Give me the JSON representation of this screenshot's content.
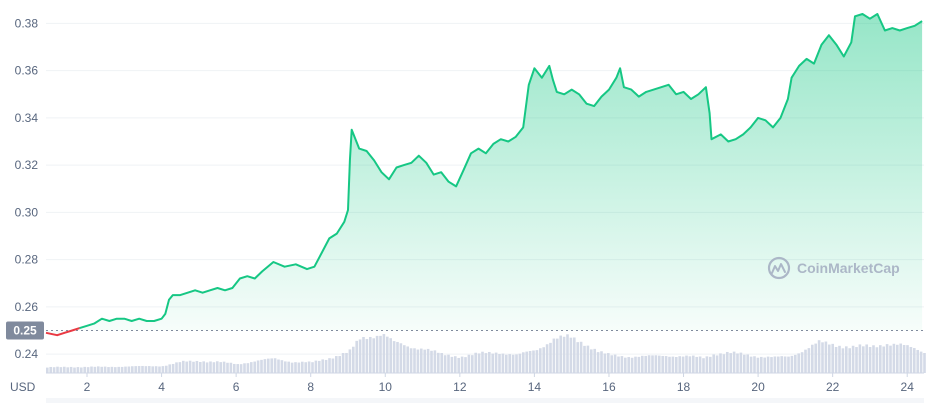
{
  "chart_data": {
    "type": "area",
    "currency_label": "USD",
    "watermark": "CoinMarketCap",
    "reference_value": 0.25,
    "reference_label": "0.25",
    "ylim": [
      0.232,
      0.3878
    ],
    "yticks": [
      0.24,
      0.26,
      0.28,
      0.3,
      0.32,
      0.34,
      0.36,
      0.38
    ],
    "ytick_labels": [
      "0.24",
      "0.26",
      "0.28",
      "0.30",
      "0.32",
      "0.34",
      "0.36",
      "0.38"
    ],
    "xlim": [
      0.9,
      24.45
    ],
    "xticks": [
      2,
      4,
      6,
      8,
      10,
      12,
      14,
      16,
      18,
      20,
      22,
      24
    ],
    "xtick_labels": [
      "2",
      "4",
      "6",
      "8",
      "10",
      "12",
      "14",
      "16",
      "18",
      "20",
      "22",
      "24"
    ],
    "colors": {
      "up": "#16c784",
      "down": "#ea3943",
      "volume": "#cfd6e4"
    },
    "series": [
      {
        "values": [
          [
            0.9,
            0.249
          ],
          [
            1.2,
            0.248
          ],
          [
            1.4,
            0.249
          ],
          [
            1.6,
            0.25
          ],
          [
            1.8,
            0.251
          ],
          [
            2.0,
            0.252
          ],
          [
            2.2,
            0.253
          ],
          [
            2.4,
            0.255
          ],
          [
            2.6,
            0.254
          ],
          [
            2.8,
            0.255
          ],
          [
            3.0,
            0.255
          ],
          [
            3.2,
            0.254
          ],
          [
            3.4,
            0.255
          ],
          [
            3.6,
            0.254
          ],
          [
            3.8,
            0.254
          ],
          [
            4.0,
            0.255
          ],
          [
            4.1,
            0.257
          ],
          [
            4.2,
            0.263
          ],
          [
            4.3,
            0.265
          ],
          [
            4.5,
            0.265
          ],
          [
            4.7,
            0.266
          ],
          [
            4.9,
            0.267
          ],
          [
            5.1,
            0.266
          ],
          [
            5.3,
            0.267
          ],
          [
            5.5,
            0.268
          ],
          [
            5.7,
            0.267
          ],
          [
            5.9,
            0.268
          ],
          [
            6.1,
            0.272
          ],
          [
            6.3,
            0.273
          ],
          [
            6.5,
            0.272
          ],
          [
            6.7,
            0.275
          ],
          [
            7.0,
            0.279
          ],
          [
            7.3,
            0.277
          ],
          [
            7.6,
            0.278
          ],
          [
            7.9,
            0.276
          ],
          [
            8.1,
            0.277
          ],
          [
            8.3,
            0.283
          ],
          [
            8.5,
            0.289
          ],
          [
            8.7,
            0.291
          ],
          [
            8.9,
            0.296
          ],
          [
            9.0,
            0.301
          ],
          [
            9.05,
            0.322
          ],
          [
            9.1,
            0.335
          ],
          [
            9.3,
            0.327
          ],
          [
            9.5,
            0.326
          ],
          [
            9.7,
            0.322
          ],
          [
            9.9,
            0.317
          ],
          [
            10.1,
            0.314
          ],
          [
            10.3,
            0.319
          ],
          [
            10.5,
            0.32
          ],
          [
            10.7,
            0.321
          ],
          [
            10.9,
            0.324
          ],
          [
            11.1,
            0.321
          ],
          [
            11.3,
            0.316
          ],
          [
            11.5,
            0.317
          ],
          [
            11.7,
            0.313
          ],
          [
            11.9,
            0.311
          ],
          [
            12.1,
            0.318
          ],
          [
            12.3,
            0.325
          ],
          [
            12.5,
            0.327
          ],
          [
            12.7,
            0.325
          ],
          [
            12.9,
            0.329
          ],
          [
            13.1,
            0.331
          ],
          [
            13.3,
            0.33
          ],
          [
            13.5,
            0.332
          ],
          [
            13.7,
            0.336
          ],
          [
            13.85,
            0.354
          ],
          [
            14.0,
            0.361
          ],
          [
            14.2,
            0.357
          ],
          [
            14.4,
            0.362
          ],
          [
            14.5,
            0.356
          ],
          [
            14.6,
            0.351
          ],
          [
            14.8,
            0.35
          ],
          [
            15.0,
            0.352
          ],
          [
            15.2,
            0.35
          ],
          [
            15.4,
            0.346
          ],
          [
            15.6,
            0.345
          ],
          [
            15.8,
            0.349
          ],
          [
            16.0,
            0.352
          ],
          [
            16.2,
            0.357
          ],
          [
            16.3,
            0.361
          ],
          [
            16.4,
            0.353
          ],
          [
            16.6,
            0.352
          ],
          [
            16.8,
            0.349
          ],
          [
            17.0,
            0.351
          ],
          [
            17.2,
            0.352
          ],
          [
            17.4,
            0.353
          ],
          [
            17.6,
            0.354
          ],
          [
            17.8,
            0.35
          ],
          [
            18.0,
            0.351
          ],
          [
            18.2,
            0.348
          ],
          [
            18.4,
            0.35
          ],
          [
            18.6,
            0.353
          ],
          [
            18.7,
            0.342
          ],
          [
            18.75,
            0.331
          ],
          [
            19.0,
            0.333
          ],
          [
            19.2,
            0.33
          ],
          [
            19.4,
            0.331
          ],
          [
            19.6,
            0.333
          ],
          [
            19.8,
            0.336
          ],
          [
            20.0,
            0.34
          ],
          [
            20.2,
            0.339
          ],
          [
            20.4,
            0.336
          ],
          [
            20.6,
            0.34
          ],
          [
            20.8,
            0.348
          ],
          [
            20.9,
            0.357
          ],
          [
            21.1,
            0.362
          ],
          [
            21.3,
            0.365
          ],
          [
            21.5,
            0.363
          ],
          [
            21.7,
            0.371
          ],
          [
            21.9,
            0.375
          ],
          [
            22.1,
            0.371
          ],
          [
            22.3,
            0.366
          ],
          [
            22.5,
            0.372
          ],
          [
            22.6,
            0.383
          ],
          [
            22.8,
            0.384
          ],
          [
            23.0,
            0.382
          ],
          [
            23.2,
            0.384
          ],
          [
            23.4,
            0.377
          ],
          [
            23.6,
            0.378
          ],
          [
            23.8,
            0.377
          ],
          [
            24.0,
            0.378
          ],
          [
            24.2,
            0.379
          ],
          [
            24.4,
            0.381
          ]
        ]
      }
    ],
    "volume": [
      [
        0.9,
        0.1
      ],
      [
        1.5,
        0.11
      ],
      [
        2.0,
        0.11
      ],
      [
        2.5,
        0.11
      ],
      [
        3.0,
        0.12
      ],
      [
        3.5,
        0.12
      ],
      [
        4.0,
        0.13
      ],
      [
        4.5,
        0.2
      ],
      [
        5.0,
        0.22
      ],
      [
        5.5,
        0.2
      ],
      [
        6.0,
        0.16
      ],
      [
        6.5,
        0.22
      ],
      [
        7.0,
        0.26
      ],
      [
        7.5,
        0.2
      ],
      [
        8.0,
        0.19
      ],
      [
        8.5,
        0.28
      ],
      [
        9.0,
        0.38
      ],
      [
        9.3,
        0.62
      ],
      [
        9.6,
        0.68
      ],
      [
        9.9,
        0.72
      ],
      [
        10.2,
        0.55
      ],
      [
        10.6,
        0.48
      ],
      [
        11.0,
        0.45
      ],
      [
        11.5,
        0.33
      ],
      [
        12.0,
        0.3
      ],
      [
        12.5,
        0.35
      ],
      [
        13.0,
        0.38
      ],
      [
        13.5,
        0.32
      ],
      [
        14.0,
        0.42
      ],
      [
        14.5,
        0.62
      ],
      [
        14.9,
        0.65
      ],
      [
        15.3,
        0.55
      ],
      [
        15.7,
        0.38
      ],
      [
        16.0,
        0.32
      ],
      [
        16.5,
        0.3
      ],
      [
        17.0,
        0.3
      ],
      [
        17.5,
        0.32
      ],
      [
        18.0,
        0.3
      ],
      [
        18.5,
        0.28
      ],
      [
        18.8,
        0.35
      ],
      [
        19.2,
        0.36
      ],
      [
        19.6,
        0.34
      ],
      [
        20.0,
        0.3
      ],
      [
        20.4,
        0.28
      ],
      [
        20.8,
        0.3
      ],
      [
        21.2,
        0.42
      ],
      [
        21.6,
        0.55
      ],
      [
        22.0,
        0.52
      ],
      [
        22.5,
        0.47
      ],
      [
        23.0,
        0.48
      ],
      [
        23.4,
        0.54
      ],
      [
        23.8,
        0.5
      ],
      [
        24.2,
        0.44
      ],
      [
        24.45,
        0.38
      ]
    ]
  }
}
